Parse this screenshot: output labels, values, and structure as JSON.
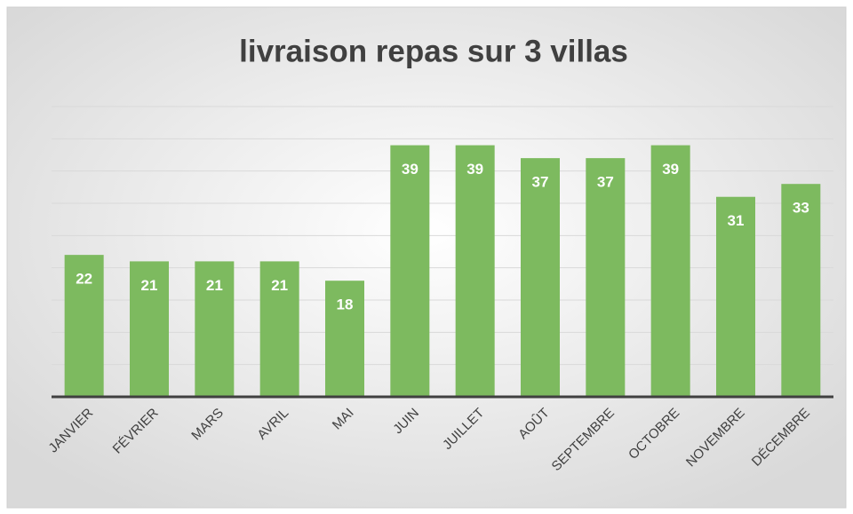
{
  "chart_data": {
    "type": "bar",
    "title": "livraison repas sur 3 villas",
    "categories": [
      "JANVIER",
      "FÉVRIER",
      "MARS",
      "AVRIL",
      "MAI",
      "JUIN",
      "JUILLET",
      "AOÛT",
      "SEPTEMBRE",
      "OCTOBRE",
      "NOVEMBRE",
      "DÉCEMBRE"
    ],
    "values": [
      22,
      21,
      21,
      21,
      18,
      39,
      39,
      37,
      37,
      39,
      31,
      33
    ],
    "color": "#7dba5f",
    "ylim": [
      0,
      45
    ],
    "yticks": [
      0,
      5,
      10,
      15,
      20,
      25,
      30,
      35,
      40,
      45
    ],
    "grid": true
  }
}
